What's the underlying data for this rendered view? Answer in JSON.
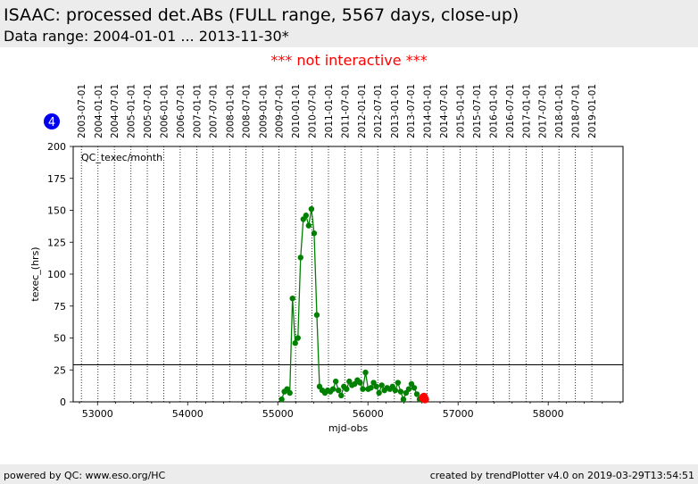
{
  "header": {
    "title": "ISAAC: processed det.ABs (FULL range, 5567 days, close-up)",
    "subtitle": "Data range: 2004-01-01 ... 2013-11-30*"
  },
  "notice": "*** not interactive ***",
  "footer": {
    "left": "powered by QC: www.eso.org/HC",
    "right": "created by trendPlotter v4.0 on 2019-03-29T13:54:51"
  },
  "badge": {
    "label": "4",
    "color": "#0000ee"
  },
  "chart_data": {
    "type": "scatter",
    "annotation": "QC_texec/month",
    "xlabel": "mjd-obs",
    "ylabel": "texec_(hrs)",
    "xlim": [
      52730,
      58830
    ],
    "ylim": [
      0,
      200
    ],
    "x_ticks": [
      53000,
      54000,
      55000,
      56000,
      57000,
      58000
    ],
    "y_ticks": [
      0,
      25,
      50,
      75,
      100,
      125,
      150,
      175,
      200
    ],
    "grid": "vertical dotted lines at date markers",
    "reference_line": 29,
    "date_markers": [
      {
        "label": "2003-07-01",
        "mjd": 52821
      },
      {
        "label": "2004-01-01",
        "mjd": 53005
      },
      {
        "label": "2004-07-01",
        "mjd": 53187
      },
      {
        "label": "2005-01-01",
        "mjd": 53371
      },
      {
        "label": "2005-07-01",
        "mjd": 53552
      },
      {
        "label": "2006-01-01",
        "mjd": 53736
      },
      {
        "label": "2006-07-01",
        "mjd": 53917
      },
      {
        "label": "2007-01-01",
        "mjd": 54101
      },
      {
        "label": "2007-07-01",
        "mjd": 54282
      },
      {
        "label": "2008-01-01",
        "mjd": 54466
      },
      {
        "label": "2008-07-01",
        "mjd": 54648
      },
      {
        "label": "2009-01-01",
        "mjd": 54832
      },
      {
        "label": "2009-07-01",
        "mjd": 55013
      },
      {
        "label": "2010-01-01",
        "mjd": 55197
      },
      {
        "label": "2010-07-01",
        "mjd": 55378
      },
      {
        "label": "2011-01-01",
        "mjd": 55562
      },
      {
        "label": "2011-07-01",
        "mjd": 55743
      },
      {
        "label": "2012-01-01",
        "mjd": 55927
      },
      {
        "label": "2012-07-01",
        "mjd": 56109
      },
      {
        "label": "2013-01-01",
        "mjd": 56293
      },
      {
        "label": "2013-07-01",
        "mjd": 56474
      },
      {
        "label": "2014-01-01",
        "mjd": 56658
      },
      {
        "label": "2014-07-01",
        "mjd": 56839
      },
      {
        "label": "2015-01-01",
        "mjd": 57023
      },
      {
        "label": "2015-07-01",
        "mjd": 57204
      },
      {
        "label": "2016-01-01",
        "mjd": 57388
      },
      {
        "label": "2016-07-01",
        "mjd": 57570
      },
      {
        "label": "2017-01-01",
        "mjd": 57754
      },
      {
        "label": "2017-07-01",
        "mjd": 57935
      },
      {
        "label": "2018-01-01",
        "mjd": 58119
      },
      {
        "label": "2018-07-01",
        "mjd": 58300
      },
      {
        "label": "2019-01-01",
        "mjd": 58484
      }
    ],
    "series": [
      {
        "color": "#008000",
        "x": [
          55043,
          55073,
          55103,
          55133,
          55163,
          55193,
          55223,
          55253,
          55283,
          55313,
          55343,
          55373,
          55403,
          55433,
          55463,
          55493,
          55523,
          55553,
          55583,
          55613,
          55643,
          55673,
          55703,
          55733,
          55763,
          55793,
          55823,
          55853,
          55883,
          55913,
          55943,
          55973,
          56003,
          56033,
          56063,
          56093,
          56123,
          56153,
          56183,
          56213,
          56243,
          56273,
          56303,
          56333,
          56363,
          56393,
          56423,
          56453,
          56483,
          56513,
          56543,
          56573,
          56603
        ],
        "y": [
          2,
          8,
          10,
          7,
          81,
          46,
          50,
          113,
          143,
          146,
          138,
          151,
          132,
          68,
          12,
          9,
          7,
          9,
          8,
          10,
          16,
          9,
          5,
          12,
          10,
          16,
          13,
          14,
          17,
          15,
          10,
          23,
          10,
          11,
          15,
          12,
          7,
          13,
          9,
          11,
          10,
          12,
          9,
          15,
          8,
          2,
          7,
          10,
          14,
          11,
          6,
          2,
          4
        ]
      },
      {
        "color": "#ff0000",
        "x": [
          56608,
          56621,
          56634
        ],
        "y": [
          3,
          4,
          2
        ]
      }
    ]
  }
}
